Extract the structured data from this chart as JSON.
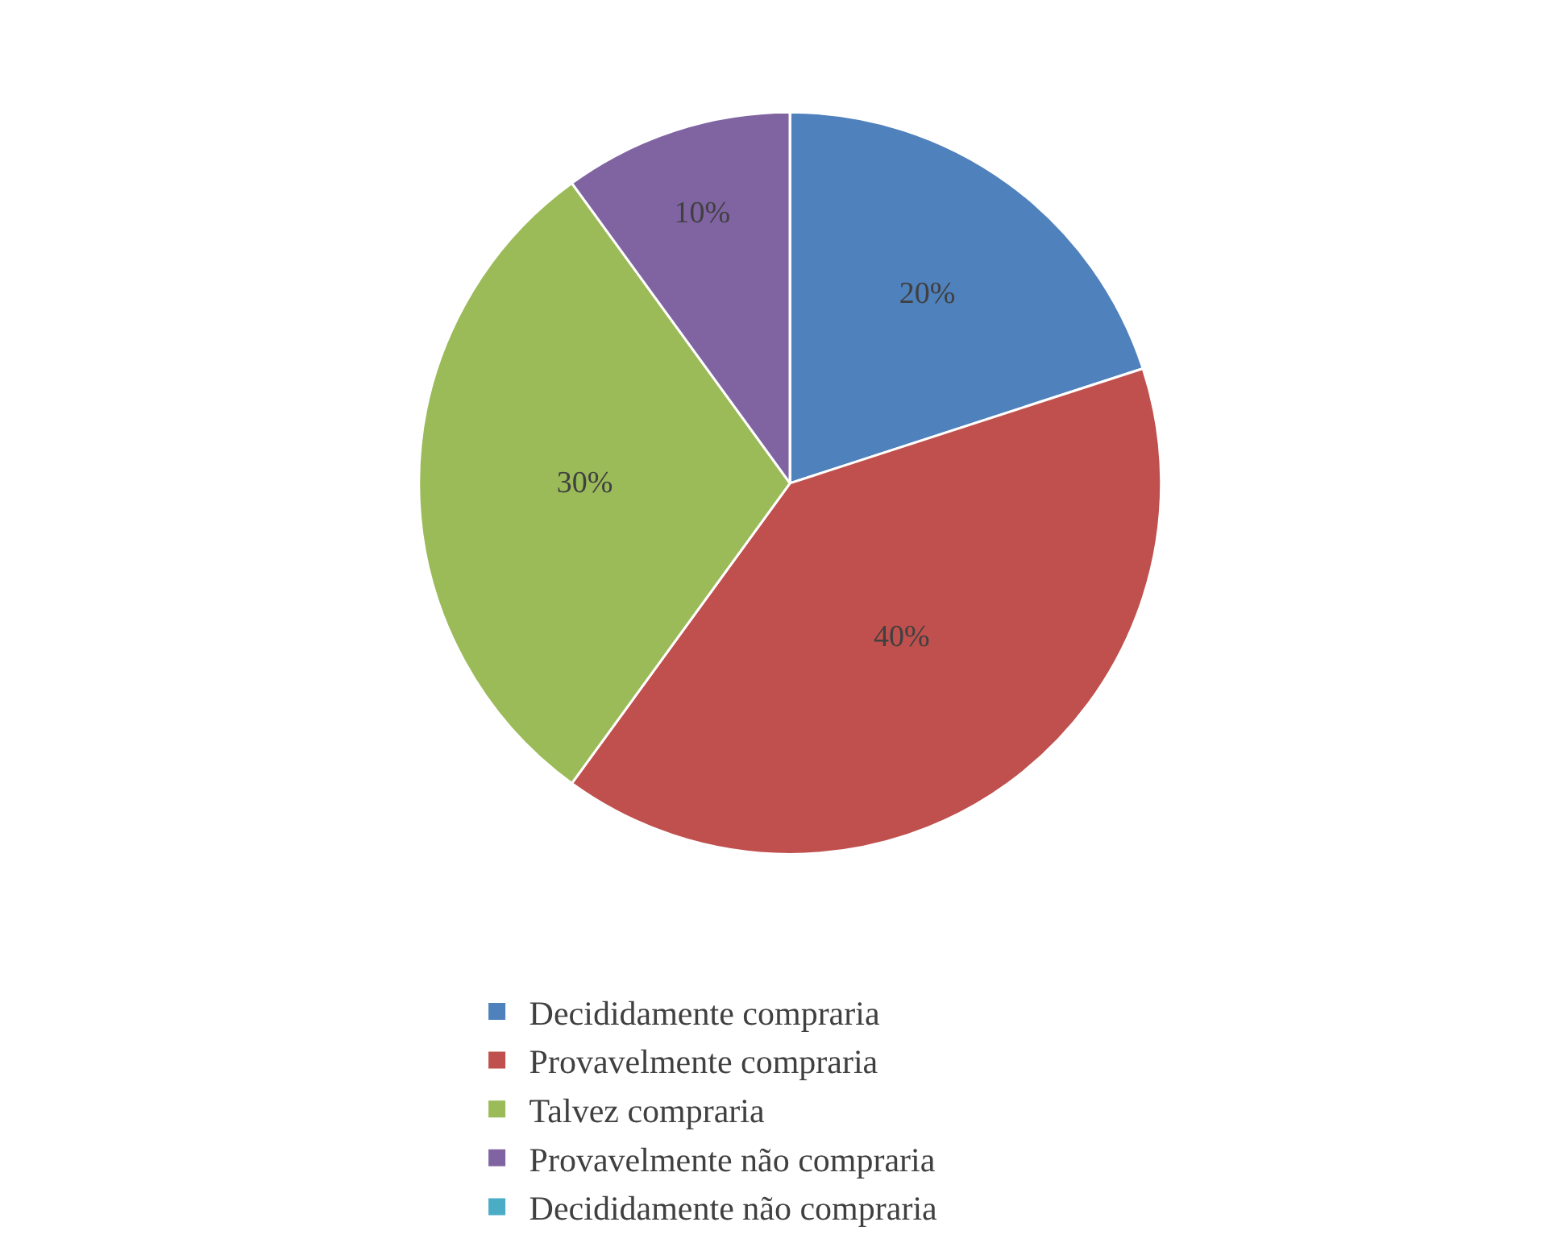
{
  "chart_data": {
    "type": "pie",
    "categories": [
      "Decididamente compraria",
      "Provavelmente compraria",
      "Talvez compraria",
      "Provavelmente não compraria",
      "Decididamente não compraria"
    ],
    "values": [
      20,
      40,
      30,
      10,
      0
    ],
    "colors": [
      "#4f81bd",
      "#c0504d",
      "#9bbb59",
      "#8064a2",
      "#4bacc6"
    ],
    "value_labels": [
      "20%",
      "40%",
      "30%",
      "10%",
      null
    ],
    "legend": "bottom"
  }
}
